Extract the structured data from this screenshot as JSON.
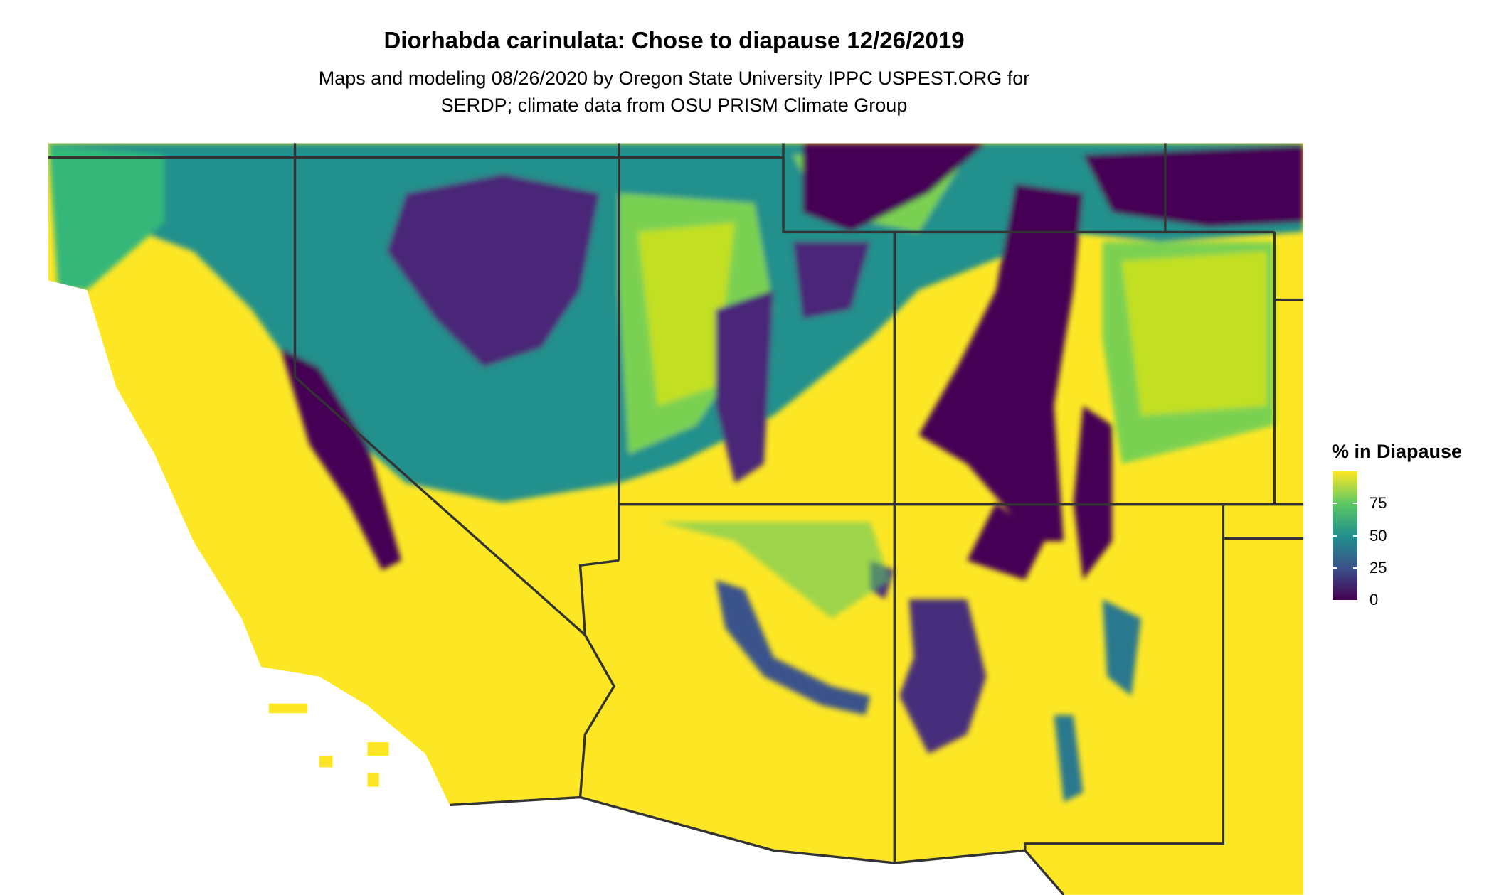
{
  "title": "Diorhabda carinulata: Chose to diapause 12/26/2019",
  "subtitle_lines": [
    "Maps and modeling 08/26/2020 by Oregon State University IPPC USPEST.ORG for",
    "SERDP; climate data from OSU PRISM Climate Group"
  ],
  "legend": {
    "title": "% in Diapause",
    "ticks": [
      "0",
      "25",
      "50",
      "75"
    ],
    "range": [
      0,
      100
    ],
    "colormap": "viridis",
    "colors": {
      "low": "#440154",
      "q1": "#3b528b",
      "mid": "#21908c",
      "q3": "#5dc863",
      "high": "#fde725"
    }
  },
  "chart_data": {
    "type": "heatmap",
    "title": "Diorhabda carinulata: Chose to diapause 12/26/2019",
    "region": "Southwestern United States",
    "value_label": "% in Diapause",
    "value_range": [
      0,
      100
    ],
    "border_color": "#333333"
  }
}
